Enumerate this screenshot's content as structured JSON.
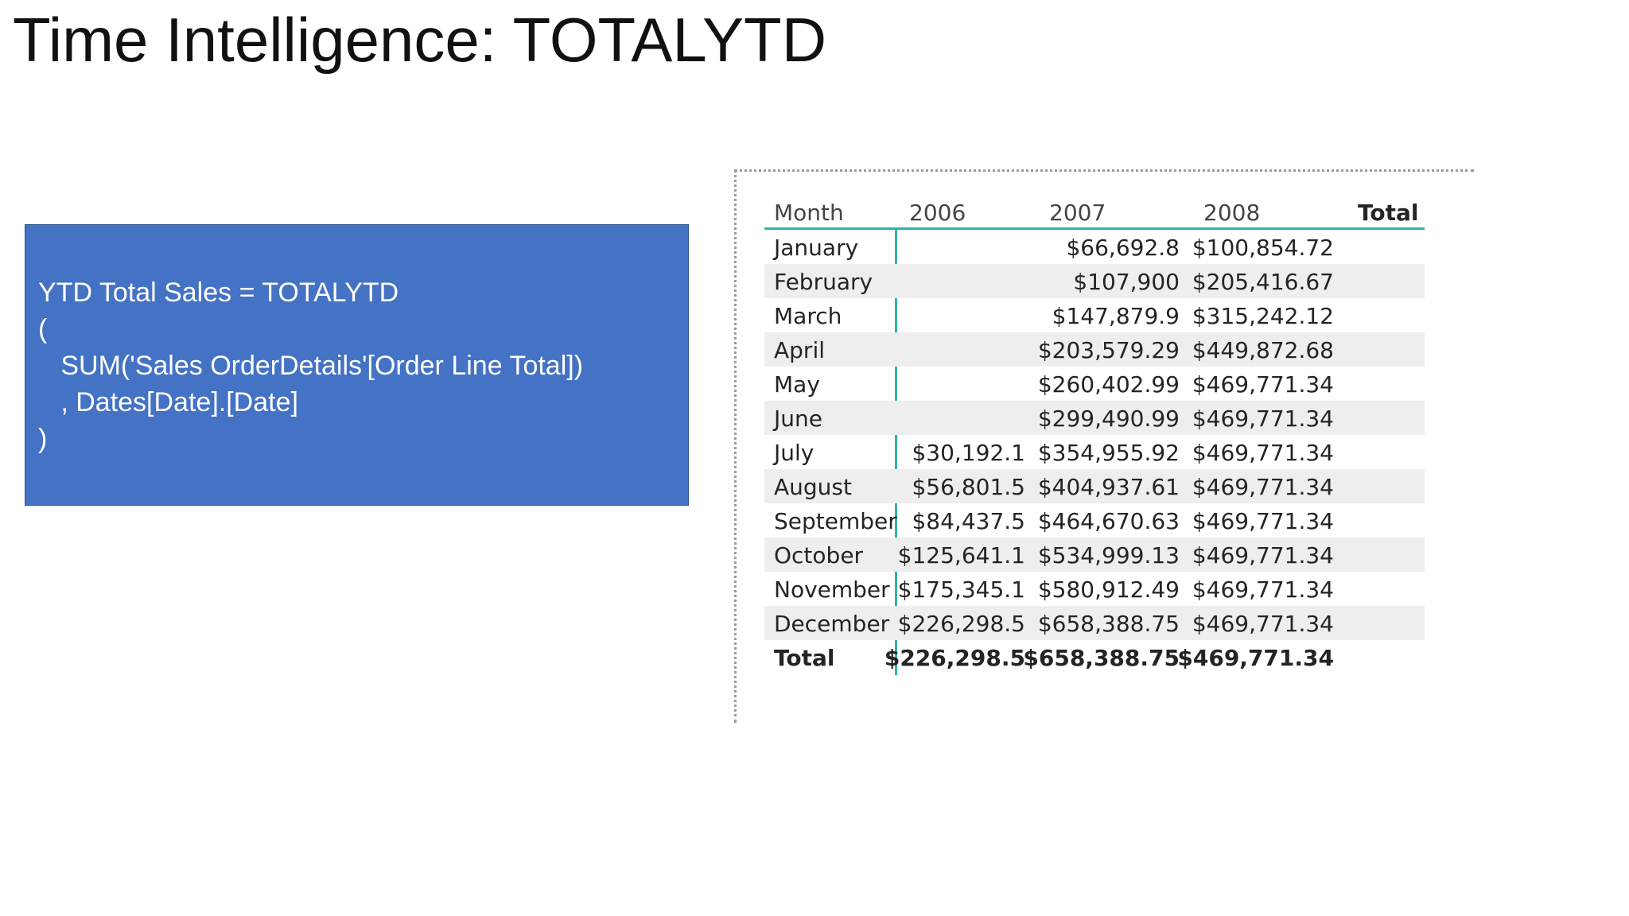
{
  "slide": {
    "title": "Time Intelligence: TOTALYTD"
  },
  "code": {
    "lines": [
      "YTD Total Sales = TOTALYTD",
      "(",
      "   SUM('Sales OrderDetails'[Order Line Total])",
      "   , Dates[Date].[Date]",
      ")"
    ],
    "box_color": "#4472c4"
  },
  "table": {
    "headers": [
      "Month",
      "2006",
      "2007",
      "2008",
      "Total"
    ],
    "rows": [
      {
        "month": "January",
        "y2006": "",
        "y2007": "$66,692.8",
        "y2008": "$100,854.72"
      },
      {
        "month": "February",
        "y2006": "",
        "y2007": "$107,900",
        "y2008": "$205,416.67"
      },
      {
        "month": "March",
        "y2006": "",
        "y2007": "$147,879.9",
        "y2008": "$315,242.12"
      },
      {
        "month": "April",
        "y2006": "",
        "y2007": "$203,579.29",
        "y2008": "$449,872.68"
      },
      {
        "month": "May",
        "y2006": "",
        "y2007": "$260,402.99",
        "y2008": "$469,771.34"
      },
      {
        "month": "June",
        "y2006": "",
        "y2007": "$299,490.99",
        "y2008": "$469,771.34"
      },
      {
        "month": "July",
        "y2006": "$30,192.1",
        "y2007": "$354,955.92",
        "y2008": "$469,771.34"
      },
      {
        "month": "August",
        "y2006": "$56,801.5",
        "y2007": "$404,937.61",
        "y2008": "$469,771.34"
      },
      {
        "month": "September",
        "y2006": "$84,437.5",
        "y2007": "$464,670.63",
        "y2008": "$469,771.34"
      },
      {
        "month": "October",
        "y2006": "$125,641.1",
        "y2007": "$534,999.13",
        "y2008": "$469,771.34"
      },
      {
        "month": "November",
        "y2006": "$175,345.1",
        "y2007": "$580,912.49",
        "y2008": "$469,771.34"
      },
      {
        "month": "December",
        "y2006": "$226,298.5",
        "y2007": "$658,388.75",
        "y2008": "$469,771.34"
      }
    ],
    "total_row": {
      "month": "Total",
      "y2006": "$226,298.5",
      "y2007": "$658,388.75",
      "y2008": "$469,771.34"
    },
    "accent_color": "#2bb5a6"
  }
}
